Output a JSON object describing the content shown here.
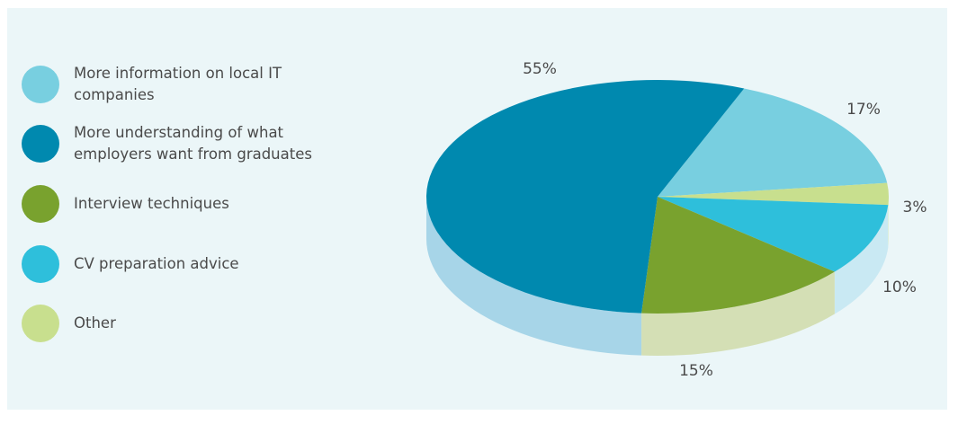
{
  "chart_data": {
    "type": "pie",
    "style": "3d",
    "slices": [
      {
        "label": "More information on local IT companies",
        "value": 17,
        "display": "17%",
        "color": "#78cfe0"
      },
      {
        "label": "More understanding of what employers want from graduates",
        "value": 55,
        "display": "55%",
        "color": "#0089af"
      },
      {
        "label": "Interview techniques",
        "value": 15,
        "display": "15%",
        "color": "#79a22e"
      },
      {
        "label": "CV preparation advice",
        "value": 10,
        "display": "10%",
        "color": "#2ebfdb"
      },
      {
        "label": "Other",
        "value": 3,
        "display": "3%",
        "color": "#c8df8e"
      }
    ],
    "legend_position": "left"
  },
  "legend": [
    {
      "lines": [
        "More information on local IT",
        "companies"
      ],
      "color": "#78cfe0"
    },
    {
      "lines": [
        "More understanding of what",
        "employers want from graduates"
      ],
      "color": "#0089af"
    },
    {
      "lines": [
        "Interview techniques"
      ],
      "color": "#79a22e"
    },
    {
      "lines": [
        "CV preparation advice"
      ],
      "color": "#2ebfdb"
    },
    {
      "lines": [
        "Other"
      ],
      "color": "#c8df8e"
    }
  ],
  "colors": {
    "panel_background": "#ebf6f8",
    "side_55": "#a7d5e8",
    "side_15": "#d4dfb5",
    "side_10": "#c9e9f3",
    "side_3": "#e8f2c8"
  }
}
